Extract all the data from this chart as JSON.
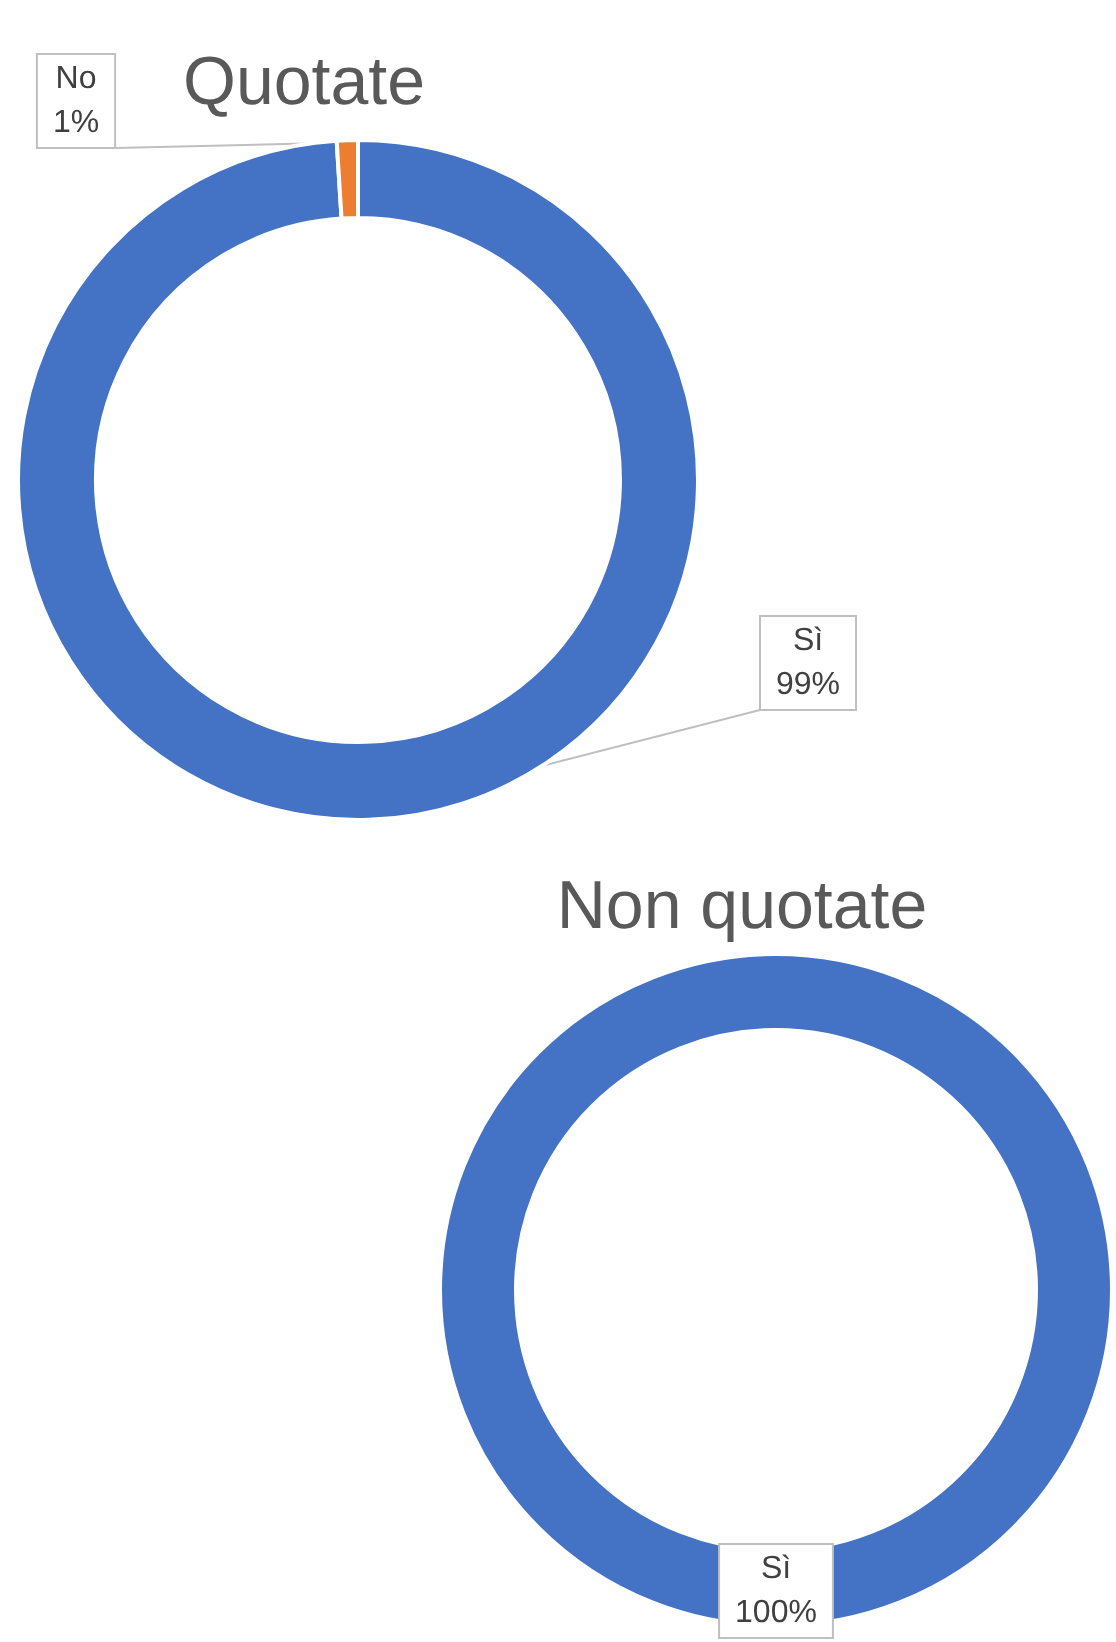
{
  "chart_data": [
    {
      "type": "donut",
      "title": "Quotate",
      "categories": [
        "Sì",
        "No"
      ],
      "values": [
        99,
        1
      ],
      "colors": [
        "#4472c4",
        "#ed7d31"
      ],
      "value_labels": [
        "99%",
        "1%"
      ],
      "legend": false
    },
    {
      "type": "donut",
      "title": "Non quotate",
      "categories": [
        "Sì"
      ],
      "values": [
        100
      ],
      "colors": [
        "#4472c4"
      ],
      "value_labels": [
        "100%"
      ],
      "legend": false
    }
  ]
}
